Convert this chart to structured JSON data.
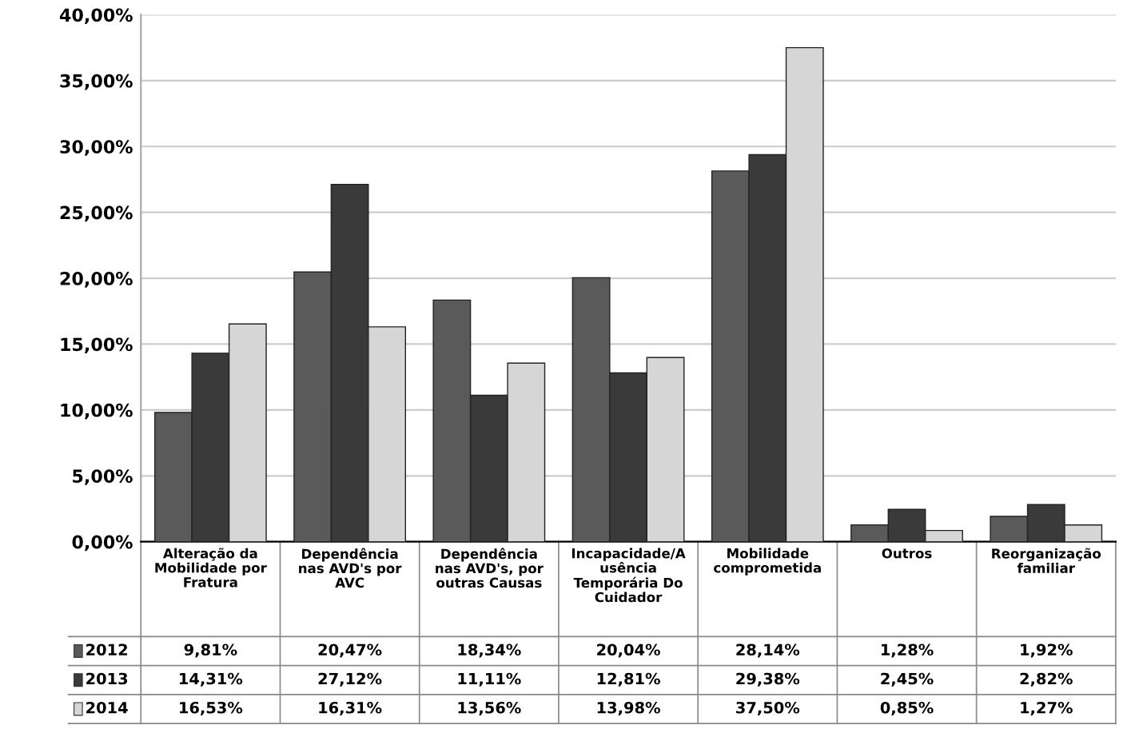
{
  "chart_data": {
    "type": "bar",
    "categories": [
      "Alteração da\nMobilidade por\nFratura",
      "Dependência\nnas AVD's por\nAVC",
      "Dependência\nnas AVD's, por\noutras Causas",
      "Incapacidade/A\nusência\nTemporária Do\nCuidador",
      "Mobilidade\ncomprometida",
      "Outros",
      "Reorganização\nfamiliar"
    ],
    "series": [
      {
        "name": "2012",
        "color": "#5a5a5a",
        "values": [
          9.81,
          20.47,
          18.34,
          20.04,
          28.14,
          1.28,
          1.92
        ],
        "value_labels": [
          "9,81%",
          "20,47%",
          "18,34%",
          "20,04%",
          "28,14%",
          "1,28%",
          "1,92%"
        ]
      },
      {
        "name": "2013",
        "color": "#3a3a3a",
        "values": [
          14.31,
          27.12,
          11.11,
          12.81,
          29.38,
          2.45,
          2.82
        ],
        "value_labels": [
          "14,31%",
          "27,12%",
          "11,11%",
          "12,81%",
          "29,38%",
          "2,45%",
          "2,82%"
        ]
      },
      {
        "name": "2014",
        "color": "#d6d6d6",
        "values": [
          16.53,
          16.31,
          13.56,
          13.98,
          37.5,
          0.85,
          1.27
        ],
        "value_labels": [
          "16,53%",
          "16,31%",
          "13,56%",
          "13,98%",
          "37,50%",
          "0,85%",
          "1,27%"
        ]
      }
    ],
    "ylim": [
      0,
      40
    ],
    "yticks": [
      {
        "value": 0,
        "label": "0,00%"
      },
      {
        "value": 5,
        "label": "5,00%"
      },
      {
        "value": 10,
        "label": "10,00%"
      },
      {
        "value": 15,
        "label": "15,00%"
      },
      {
        "value": 20,
        "label": "20,00%"
      },
      {
        "value": 25,
        "label": "25,00%"
      },
      {
        "value": 30,
        "label": "30,00%"
      },
      {
        "value": 35,
        "label": "35,00%"
      },
      {
        "value": 40,
        "label": "40,00%"
      }
    ],
    "grid": "y",
    "legend": "bottom"
  }
}
